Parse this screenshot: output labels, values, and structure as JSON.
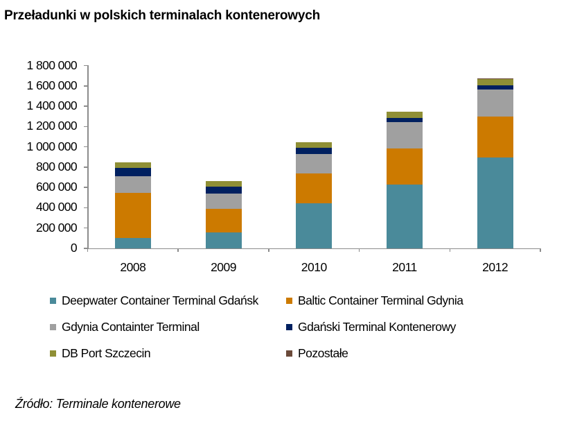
{
  "title": "Przeładunki w polskich terminalach kontenerowych",
  "source": "Źródło: Terminale kontenerowe",
  "chart_data": {
    "type": "bar",
    "stacked": true,
    "title": "Przeładunki w polskich terminalach kontenerowych",
    "xlabel": "",
    "ylabel": "",
    "ylim": [
      0,
      1800000
    ],
    "yticks": [
      0,
      200000,
      400000,
      600000,
      800000,
      1000000,
      1200000,
      1400000,
      1600000,
      1800000
    ],
    "ytick_labels": [
      "0",
      "200 000",
      "400 000",
      "600 000",
      "800 000",
      "1 000 000",
      "1 200 000",
      "1 400 000",
      "1 600 000",
      "1 800 000"
    ],
    "grid": false,
    "legend_position": "bottom",
    "categories": [
      "2008",
      "2009",
      "2010",
      "2011",
      "2012"
    ],
    "series": [
      {
        "name": "Deepwater Container Terminal Gdańsk",
        "color": "#4A8A9A",
        "values": [
          103000,
          160000,
          445000,
          631000,
          897000
        ]
      },
      {
        "name": "Baltic Container Terminal Gdynia",
        "color": "#CC7A00",
        "values": [
          441000,
          230000,
          290000,
          356000,
          404000
        ]
      },
      {
        "name": "Gdynia Containter Terminal",
        "color": "#A0A0A0",
        "values": [
          166000,
          148000,
          196000,
          255000,
          265000
        ]
      },
      {
        "name": "Gdański Terminal Kontenerowy",
        "color": "#002060",
        "values": [
          80000,
          68000,
          57000,
          43000,
          39000
        ]
      },
      {
        "name": "DB Port Szczecin",
        "color": "#8F8F35",
        "values": [
          59000,
          60000,
          57000,
          59000,
          60000
        ]
      },
      {
        "name": "Pozostałe",
        "color": "#6B4A3A",
        "values": [
          0,
          0,
          0,
          0,
          10000
        ]
      }
    ]
  },
  "legend": [
    {
      "label": "Deepwater Container Terminal Gdańsk",
      "color": "#4A8A9A"
    },
    {
      "label": "Baltic Container Terminal Gdynia",
      "color": "#CC7A00"
    },
    {
      "label": "Gdynia Containter Terminal",
      "color": "#A0A0A0"
    },
    {
      "label": "Gdański Terminal Kontenerowy",
      "color": "#002060"
    },
    {
      "label": "DB Port Szczecin",
      "color": "#8F8F35"
    },
    {
      "label": "Pozostałe",
      "color": "#6B4A3A"
    }
  ]
}
